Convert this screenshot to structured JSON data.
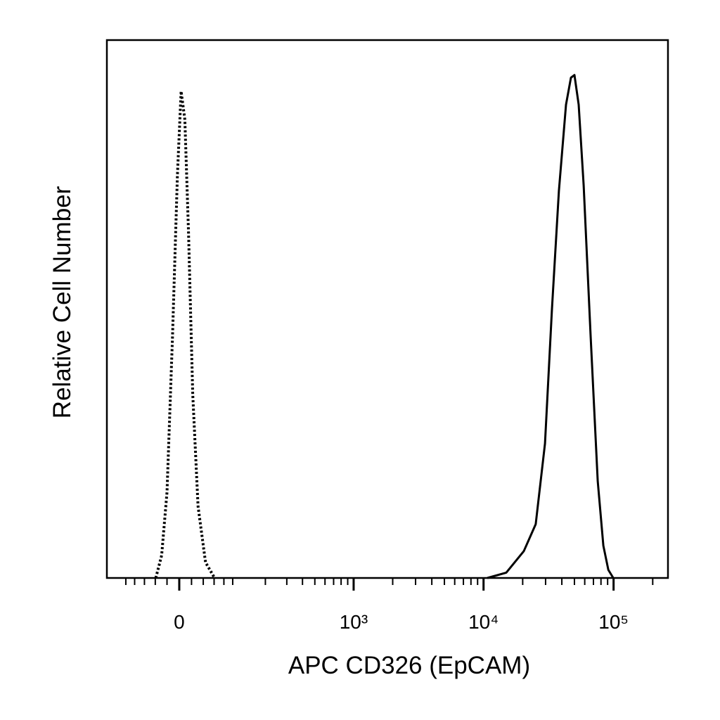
{
  "chart_data": {
    "type": "line",
    "xlabel": "APC  CD326 (EpCAM)",
    "ylabel": "Relative Cell Number",
    "xscale": "biexponential",
    "xlim": [
      -152,
      262000
    ],
    "ylim": [
      0,
      100
    ],
    "xticks": [
      0,
      {
        "value": 1000,
        "label": "10³"
      },
      {
        "value": 10000,
        "label": "10⁴"
      },
      {
        "value": 100000,
        "label": "10⁵"
      }
    ],
    "xminorticks": [
      -100,
      -80,
      -60,
      -40,
      -20,
      20,
      40,
      60,
      80,
      100,
      200,
      300,
      400,
      500,
      600,
      700,
      800,
      900,
      2000,
      3000,
      4000,
      5000,
      6000,
      7000,
      8000,
      9000,
      20000,
      30000,
      40000,
      50000,
      60000,
      70000,
      80000,
      90000,
      200000
    ],
    "series": [
      {
        "color": "#000000",
        "dashed": true,
        "x": [
          -39,
          -29,
          -20,
          -11,
          -3,
          3,
          9,
          15,
          22,
          31,
          44,
          61
        ],
        "values": [
          0,
          4.2,
          15.9,
          44.7,
          74.8,
          90.5,
          85.2,
          64.3,
          34.2,
          13.3,
          2.9,
          0
        ]
      },
      {
        "color": "#000000",
        "dashed": false,
        "x": [
          10700,
          14950,
          20400,
          25200,
          29700,
          33600,
          38000,
          43100,
          47000,
          50000,
          53900,
          58900,
          66600,
          75500,
          83400,
          91100,
          99400
        ],
        "values": [
          0,
          1,
          5,
          10,
          25,
          50,
          72,
          88,
          93,
          93.5,
          88,
          73,
          45,
          18,
          6,
          1.5,
          0
        ]
      }
    ]
  }
}
